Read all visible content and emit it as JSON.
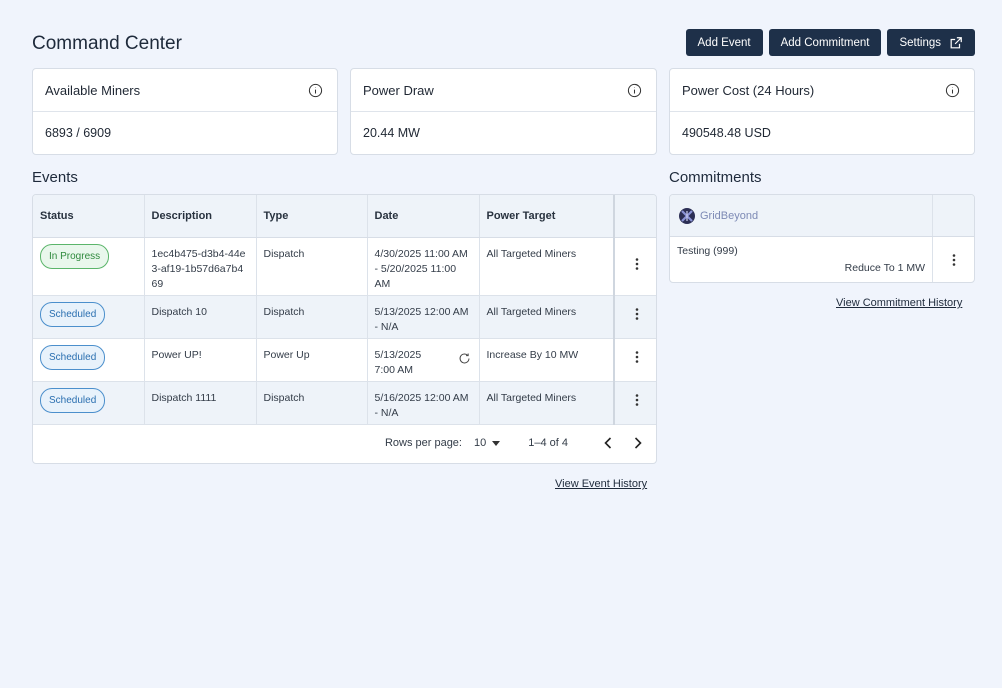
{
  "header": {
    "title": "Command Center",
    "buttons": {
      "add_event": "Add Event",
      "add_commitment": "Add Commitment",
      "settings": "Settings"
    }
  },
  "metrics": [
    {
      "label": "Available Miners",
      "value": "6893 / 6909"
    },
    {
      "label": "Power Draw",
      "value": "20.44 MW"
    },
    {
      "label": "Power Cost (24 Hours)",
      "value": "490548.48 USD"
    }
  ],
  "events": {
    "title": "Events",
    "columns": [
      "Status",
      "Description",
      "Type",
      "Date",
      "Power Target"
    ],
    "rows": [
      {
        "status": "In Progress",
        "description": "1ec4b475-d3b4-44e3-af19-1b57d6a7b469",
        "type": "Dispatch",
        "date": "4/30/2025 11:00 AM - 5/20/2025 11:00 AM",
        "target": "All Targeted Miners"
      },
      {
        "status": "Scheduled",
        "description": "Dispatch 10",
        "type": "Dispatch",
        "date": "5/13/2025 12:00 AM - N/A",
        "target": "All Targeted Miners"
      },
      {
        "status": "Scheduled",
        "description": "Power UP!",
        "type": "Power Up",
        "date": "5/13/2025 7:00 AM",
        "target": "Increase By 10 MW"
      },
      {
        "status": "Scheduled",
        "description": "Dispatch 1111",
        "type": "Dispatch",
        "date": "5/16/2025 12:00 AM - N/A",
        "target": "All Targeted Miners"
      }
    ],
    "pagination": {
      "rows_per_page_label": "Rows per page:",
      "rows_per_page": "10",
      "range": "1–4 of 4"
    },
    "history_link": "View Event History"
  },
  "commitments": {
    "title": "Commitments",
    "provider": "GridBeyond",
    "rows": [
      {
        "name": "Testing (999)",
        "action": "Reduce To 1 MW"
      }
    ],
    "history_link": "View Commitment History"
  },
  "colors": {
    "primary": "#1e3049",
    "background": "#f0f4fc",
    "in_progress": "#2f8a3d",
    "scheduled": "#2a6fb0"
  }
}
